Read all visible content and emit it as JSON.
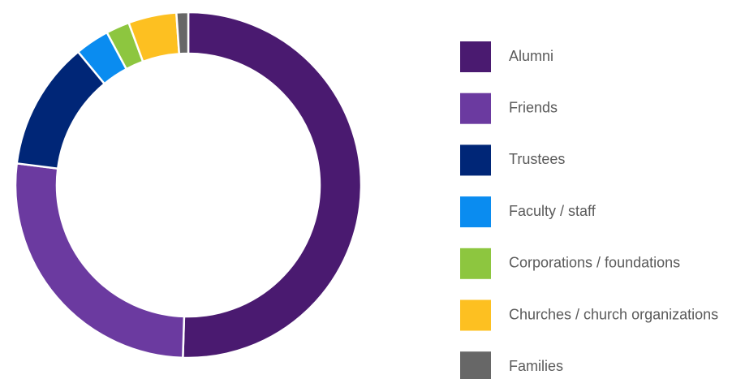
{
  "chart_data": {
    "type": "donut",
    "categories": [
      "Alumni",
      "Friends",
      "Trustees",
      "Faculty / staff",
      "Corporations / foundations",
      "Churches / church organizations",
      "Families"
    ],
    "values": [
      50.5,
      26.5,
      12,
      3.2,
      2.2,
      4.5,
      1.1
    ],
    "colors": [
      "#4a1a70",
      "#6b3aa0",
      "#002677",
      "#0a8cf0",
      "#8dc63f",
      "#fdc021",
      "#676767"
    ],
    "legend": "right"
  }
}
